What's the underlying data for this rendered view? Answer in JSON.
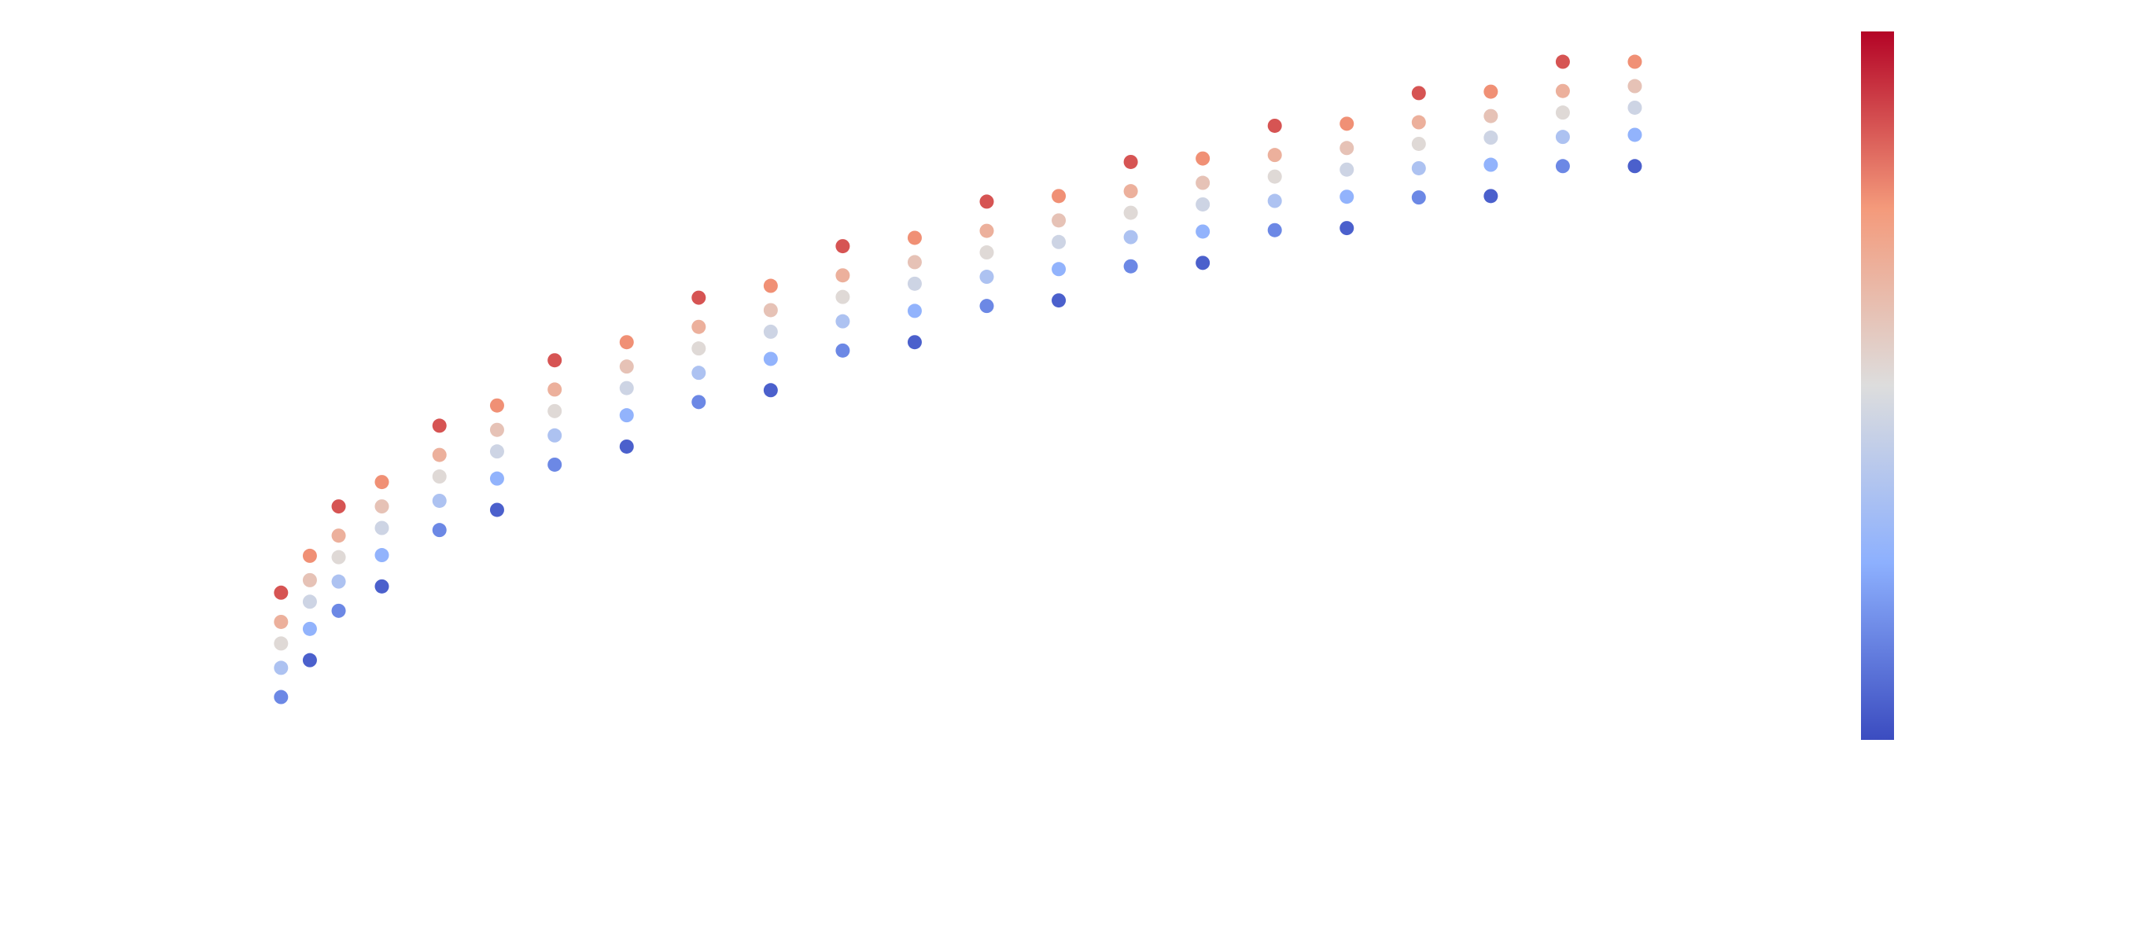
{
  "chart_data": {
    "type": "scatter",
    "x": [
      1,
      1,
      1,
      1,
      1,
      3,
      3,
      3,
      3,
      3,
      5,
      5,
      5,
      5,
      5,
      8,
      8,
      8,
      8,
      8,
      12,
      12,
      12,
      12,
      12,
      16,
      16,
      16,
      16,
      16,
      20,
      20,
      20,
      20,
      20,
      25,
      25,
      25,
      25,
      25,
      30,
      30,
      30,
      30,
      30,
      35,
      35,
      35,
      35,
      35,
      40,
      40,
      40,
      40,
      40,
      45,
      45,
      45,
      45,
      45,
      50,
      50,
      50,
      50,
      50,
      55,
      55,
      55,
      55,
      55,
      60,
      60,
      60,
      60,
      60,
      65,
      65,
      65,
      65,
      65,
      70,
      70,
      70,
      70,
      70,
      75,
      75,
      75,
      75,
      75,
      80,
      80,
      80,
      80,
      80,
      85,
      85,
      85,
      85,
      85,
      90,
      90,
      90,
      90,
      90,
      95,
      95,
      95,
      95,
      95
    ],
    "y": [
      20.7,
      16.5,
      13.4,
      9.9,
      5.7,
      26.0,
      22.5,
      19.4,
      15.5,
      11.0,
      33.1,
      28.9,
      25.8,
      22.3,
      18.1,
      36.6,
      33.1,
      30.0,
      26.1,
      21.6,
      44.7,
      40.5,
      37.4,
      33.9,
      29.7,
      47.6,
      44.1,
      41.0,
      37.1,
      32.6,
      54.1,
      49.9,
      46.8,
      43.3,
      39.1,
      56.7,
      53.2,
      50.1,
      46.2,
      41.7,
      63.1,
      58.9,
      55.8,
      52.3,
      48.1,
      64.8,
      61.3,
      58.2,
      54.3,
      49.8,
      70.5,
      66.3,
      63.2,
      59.7,
      55.5,
      71.7,
      68.2,
      65.1,
      61.2,
      56.7,
      76.9,
      72.7,
      69.6,
      66.1,
      61.9,
      77.7,
      74.2,
      71.1,
      67.2,
      62.7,
      82.6,
      78.4,
      75.3,
      71.8,
      67.6,
      83.1,
      79.6,
      76.5,
      72.6,
      68.1,
      87.8,
      83.6,
      80.5,
      77.0,
      72.8,
      88.1,
      84.6,
      81.5,
      77.6,
      73.1,
      92.5,
      88.3,
      85.2,
      81.7,
      77.5,
      92.7,
      89.2,
      86.1,
      82.2,
      77.7,
      97.0,
      92.8,
      89.7,
      86.2,
      82.0,
      97.0,
      93.5,
      90.4,
      86.5,
      82.0
    ],
    "c": [
      2.2,
      1.0,
      0.1,
      -0.9,
      -2.1,
      1.6,
      0.6,
      -0.3,
      -1.4,
      -2.7,
      2.2,
      1.0,
      0.1,
      -0.9,
      -2.1,
      1.6,
      0.6,
      -0.3,
      -1.4,
      -2.7,
      2.2,
      1.0,
      0.1,
      -0.9,
      -2.1,
      1.6,
      0.6,
      -0.3,
      -1.4,
      -2.7,
      2.2,
      1.0,
      0.1,
      -0.9,
      -2.1,
      1.6,
      0.6,
      -0.3,
      -1.4,
      -2.7,
      2.2,
      1.0,
      0.1,
      -0.9,
      -2.1,
      1.6,
      0.6,
      -0.3,
      -1.4,
      -2.7,
      2.2,
      1.0,
      0.1,
      -0.9,
      -2.1,
      1.6,
      0.6,
      -0.3,
      -1.4,
      -2.7,
      2.2,
      1.0,
      0.1,
      -0.9,
      -2.1,
      1.6,
      0.6,
      -0.3,
      -1.4,
      -2.7,
      2.2,
      1.0,
      0.1,
      -0.9,
      -2.1,
      1.6,
      0.6,
      -0.3,
      -1.4,
      -2.7,
      2.2,
      1.0,
      0.1,
      -0.9,
      -2.1,
      1.6,
      0.6,
      -0.3,
      -1.4,
      -2.7,
      2.2,
      1.0,
      0.1,
      -0.9,
      -2.1,
      1.6,
      0.6,
      -0.3,
      -1.4,
      -2.7,
      2.2,
      1.0,
      0.1,
      -0.9,
      -2.1,
      1.6,
      0.6,
      -0.3,
      -1.4,
      -2.7
    ],
    "xlim": [
      0,
      100
    ],
    "ylim": [
      0,
      100
    ],
    "clim": [
      -3,
      3
    ],
    "colormap": [
      "#3b4cc0",
      "#8db0fe",
      "#dddddd",
      "#f49a7b",
      "#b40426"
    ],
    "colorbar": true
  }
}
